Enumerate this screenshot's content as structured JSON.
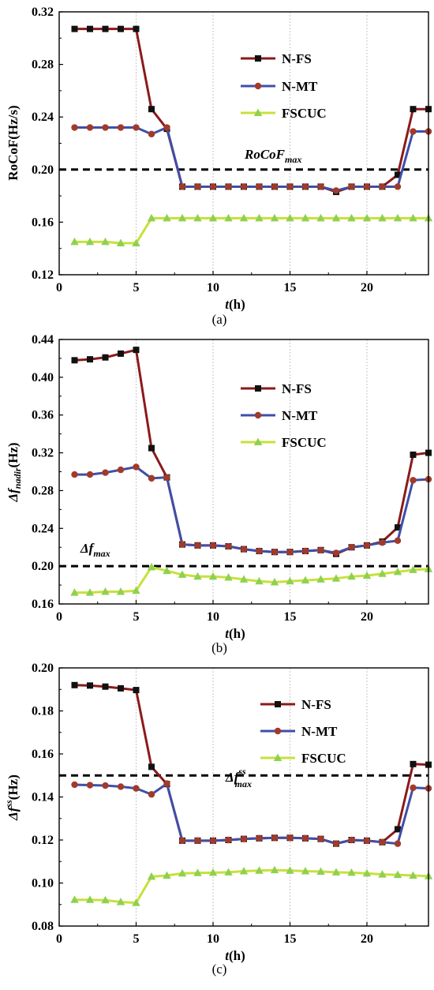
{
  "colors": {
    "N-FS": "#8b1a1a",
    "N-MT": "#3f4fa8",
    "FSCUC": "#c8e03c",
    "threshold": "#000000",
    "marker_nfs": "#111111",
    "marker_nmt": "#a23a2a",
    "marker_fscuc": "#8fd14f"
  },
  "chart_data": [
    {
      "type": "line",
      "panel_label": "(a)",
      "ylabel": "RoCoF(Hz/s)",
      "xlabel_italic": "t",
      "xlabel_rest": "(h)",
      "xlim": [
        0,
        24
      ],
      "ylim": [
        0.12,
        0.32
      ],
      "yticks": [
        "0.12",
        "0.16",
        "0.20",
        "0.24",
        "0.28",
        "0.32"
      ],
      "xticks": [
        "0",
        "5",
        "10",
        "15",
        "20"
      ],
      "grid": "vertical dotted",
      "legend": "upper-right",
      "threshold": {
        "y": 0.2,
        "label_main": "RoCoF",
        "label_sub": "max",
        "label_sup": ""
      },
      "x": [
        1,
        2,
        3,
        4,
        5,
        6,
        7,
        8,
        9,
        10,
        11,
        12,
        13,
        14,
        15,
        16,
        17,
        18,
        19,
        20,
        21,
        22,
        23,
        24
      ],
      "series": [
        {
          "name": "N-FS",
          "marker": "square",
          "values": [
            0.307,
            0.307,
            0.307,
            0.307,
            0.307,
            0.246,
            0.231,
            0.187,
            0.187,
            0.187,
            0.187,
            0.187,
            0.187,
            0.187,
            0.187,
            0.187,
            0.187,
            0.183,
            0.187,
            0.187,
            0.187,
            0.196,
            0.246,
            0.246
          ]
        },
        {
          "name": "N-MT",
          "marker": "circle",
          "values": [
            0.232,
            0.232,
            0.232,
            0.232,
            0.232,
            0.227,
            0.232,
            0.187,
            0.187,
            0.187,
            0.187,
            0.187,
            0.187,
            0.187,
            0.187,
            0.187,
            0.187,
            0.184,
            0.187,
            0.187,
            0.187,
            0.187,
            0.229,
            0.229
          ]
        },
        {
          "name": "FSCUC",
          "marker": "triangle",
          "values": [
            0.145,
            0.145,
            0.145,
            0.144,
            0.144,
            0.163,
            0.163,
            0.163,
            0.163,
            0.163,
            0.163,
            0.163,
            0.163,
            0.163,
            0.163,
            0.163,
            0.163,
            0.163,
            0.163,
            0.163,
            0.163,
            0.163,
            0.163,
            0.163
          ]
        }
      ]
    },
    {
      "type": "line",
      "panel_label": "(b)",
      "ylabel_main": "Δf",
      "ylabel_sub": "nadir",
      "ylabel_rest": "(Hz)",
      "xlabel_italic": "t",
      "xlabel_rest": "(h)",
      "xlim": [
        0,
        24
      ],
      "ylim": [
        0.16,
        0.44
      ],
      "yticks": [
        "0.16",
        "0.20",
        "0.24",
        "0.28",
        "0.32",
        "0.36",
        "0.40",
        "0.44"
      ],
      "xticks": [
        "0",
        "5",
        "10",
        "15",
        "20"
      ],
      "grid": "vertical dotted",
      "legend": "upper-right",
      "threshold": {
        "y": 0.2,
        "label_main": "Δf",
        "label_sub": "max",
        "label_sup": ""
      },
      "x": [
        1,
        2,
        3,
        4,
        5,
        6,
        7,
        8,
        9,
        10,
        11,
        12,
        13,
        14,
        15,
        16,
        17,
        18,
        19,
        20,
        21,
        22,
        23,
        24
      ],
      "series": [
        {
          "name": "N-FS",
          "marker": "square",
          "values": [
            0.418,
            0.419,
            0.421,
            0.425,
            0.429,
            0.325,
            0.294,
            0.223,
            0.222,
            0.222,
            0.221,
            0.218,
            0.216,
            0.215,
            0.215,
            0.216,
            0.217,
            0.213,
            0.22,
            0.222,
            0.226,
            0.241,
            0.318,
            0.32
          ]
        },
        {
          "name": "N-MT",
          "marker": "circle",
          "values": [
            0.297,
            0.297,
            0.299,
            0.302,
            0.305,
            0.293,
            0.294,
            0.223,
            0.222,
            0.222,
            0.221,
            0.218,
            0.216,
            0.215,
            0.215,
            0.216,
            0.217,
            0.214,
            0.22,
            0.222,
            0.225,
            0.227,
            0.291,
            0.292
          ]
        },
        {
          "name": "FSCUC",
          "marker": "triangle",
          "values": [
            0.172,
            0.172,
            0.173,
            0.173,
            0.174,
            0.199,
            0.195,
            0.191,
            0.189,
            0.189,
            0.188,
            0.186,
            0.184,
            0.183,
            0.184,
            0.185,
            0.186,
            0.187,
            0.189,
            0.19,
            0.192,
            0.194,
            0.196,
            0.197
          ]
        }
      ]
    },
    {
      "type": "line",
      "panel_label": "(c)",
      "ylabel_main": "Δf",
      "ylabel_sup": "ss",
      "ylabel_rest": "(Hz)",
      "xlabel_italic": "t",
      "xlabel_rest": "(h)",
      "xlim": [
        0,
        24
      ],
      "ylim": [
        0.08,
        0.2
      ],
      "yticks": [
        "0.08",
        "0.10",
        "0.12",
        "0.14",
        "0.16",
        "0.18",
        "0.20"
      ],
      "xticks": [
        "0",
        "5",
        "10",
        "15",
        "20"
      ],
      "grid": "vertical dotted",
      "legend": "upper-right",
      "threshold": {
        "y": 0.15,
        "label_main": "Δf",
        "label_sub": "max",
        "label_sup": "ss"
      },
      "x": [
        1,
        2,
        3,
        4,
        5,
        6,
        7,
        8,
        9,
        10,
        11,
        12,
        13,
        14,
        15,
        16,
        17,
        18,
        19,
        20,
        21,
        22,
        23,
        24
      ],
      "series": [
        {
          "name": "N-FS",
          "marker": "square",
          "values": [
            0.192,
            0.1918,
            0.1913,
            0.1905,
            0.1897,
            0.154,
            0.146,
            0.1197,
            0.1197,
            0.1197,
            0.12,
            0.1205,
            0.1208,
            0.121,
            0.121,
            0.1208,
            0.1205,
            0.1183,
            0.12,
            0.1197,
            0.119,
            0.125,
            0.1553,
            0.155
          ]
        },
        {
          "name": "N-MT",
          "marker": "circle",
          "values": [
            0.1457,
            0.1455,
            0.1453,
            0.1448,
            0.144,
            0.1412,
            0.1462,
            0.1197,
            0.1197,
            0.1197,
            0.12,
            0.1205,
            0.1208,
            0.121,
            0.121,
            0.1208,
            0.1205,
            0.1183,
            0.12,
            0.1197,
            0.119,
            0.1183,
            0.1443,
            0.144
          ]
        },
        {
          "name": "FSCUC",
          "marker": "triangle",
          "values": [
            0.0922,
            0.0922,
            0.092,
            0.0912,
            0.0908,
            0.103,
            0.1035,
            0.1045,
            0.1047,
            0.1048,
            0.105,
            0.1055,
            0.1058,
            0.106,
            0.1058,
            0.1055,
            0.1053,
            0.105,
            0.1048,
            0.1045,
            0.104,
            0.1038,
            0.1035,
            0.1032
          ]
        }
      ]
    }
  ]
}
